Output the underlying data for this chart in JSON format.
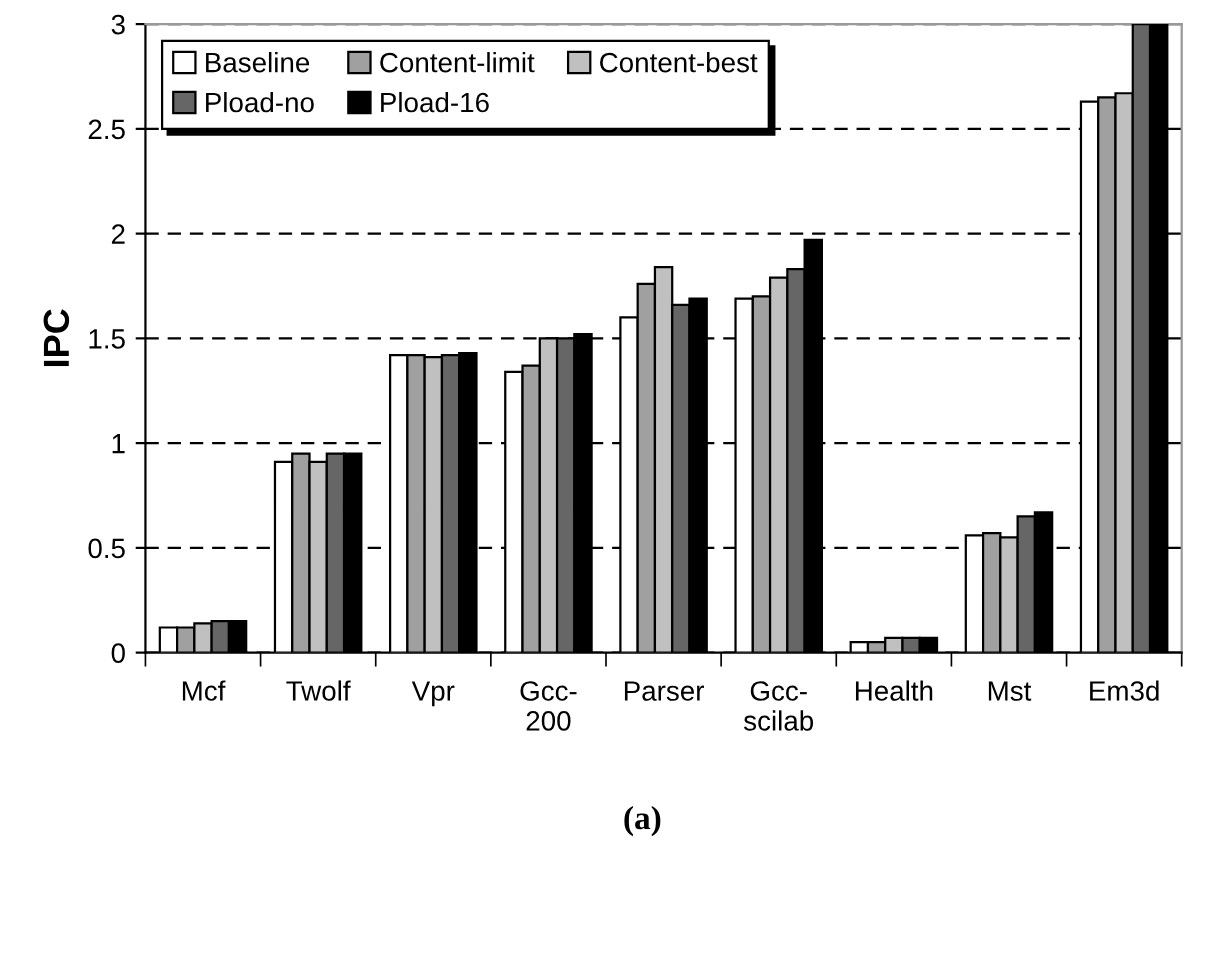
{
  "chart_data": {
    "type": "bar",
    "ylabel": "IPC",
    "annotations": [
      "(a)"
    ],
    "categories": [
      "Mcf",
      "Twolf",
      "Vpr",
      "Gcc-\n200",
      "Parser",
      "Gcc-\nscilab",
      "Health",
      "Mst",
      "Em3d"
    ],
    "series": [
      {
        "name": "Baseline",
        "color": "#ffffff",
        "values": [
          0.12,
          0.91,
          1.42,
          1.34,
          1.6,
          1.69,
          0.05,
          0.56,
          2.63
        ]
      },
      {
        "name": "Content-limit",
        "color": "#a0a0a0",
        "values": [
          0.12,
          0.95,
          1.42,
          1.37,
          1.76,
          1.7,
          0.05,
          0.57,
          2.65
        ]
      },
      {
        "name": "Content-best",
        "color": "#c0c0c0",
        "values": [
          0.14,
          0.91,
          1.41,
          1.5,
          1.84,
          1.79,
          0.07,
          0.55,
          2.67
        ]
      },
      {
        "name": "Pload-no",
        "color": "#666666",
        "values": [
          0.15,
          0.95,
          1.42,
          1.5,
          1.66,
          1.83,
          0.07,
          0.65,
          3
        ]
      },
      {
        "name": "Pload-16",
        "color": "#000000",
        "values": [
          0.15,
          0.95,
          1.43,
          1.52,
          1.69,
          1.97,
          0.07,
          0.67,
          3
        ]
      }
    ],
    "ylim": [
      0,
      3
    ],
    "yticks": [
      0,
      0.5,
      1,
      1.5,
      2,
      2.5,
      3
    ],
    "grid": "y",
    "legend": "top left"
  }
}
